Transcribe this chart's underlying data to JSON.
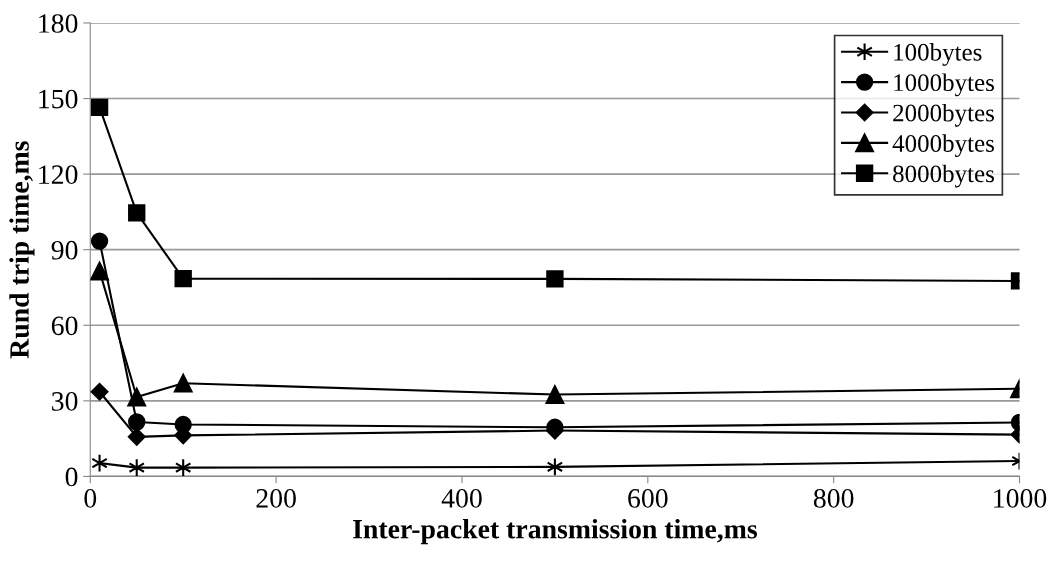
{
  "chart_data": {
    "type": "line",
    "xlabel": "Inter-packet transmission time,ms",
    "ylabel": "Rund trip time,ms",
    "x": [
      10,
      50,
      100,
      500,
      1000
    ],
    "series": [
      {
        "name": "100bytes",
        "color": "#000000",
        "marker": "cross",
        "values": [
          5.3,
          3.5,
          3.5,
          3.8,
          6.1
        ]
      },
      {
        "name": "1000bytes",
        "color": "#000000",
        "marker": "circle",
        "values": [
          93.4,
          21.6,
          20.6,
          19.5,
          21.4
        ]
      },
      {
        "name": "2000bytes",
        "color": "#000000",
        "marker": "diamond",
        "values": [
          33.6,
          15.7,
          16.3,
          18.2,
          16.6
        ]
      },
      {
        "name": "4000bytes",
        "color": "#000000",
        "marker": "triangle",
        "values": [
          81.5,
          31.5,
          37,
          32.5,
          34.8
        ]
      },
      {
        "name": "8000bytes",
        "color": "#000000",
        "marker": "square",
        "values": [
          146.5,
          104.6,
          78.5,
          78.4,
          77.6
        ]
      }
    ],
    "xlim": [
      0,
      1000
    ],
    "ylim": [
      0,
      180
    ],
    "xticks": [
      0,
      200,
      400,
      600,
      800,
      1000
    ],
    "yticks": [
      0,
      30,
      60,
      90,
      120,
      150,
      180
    ],
    "grid": "y",
    "legend": "top right",
    "line_style": "solid"
  }
}
